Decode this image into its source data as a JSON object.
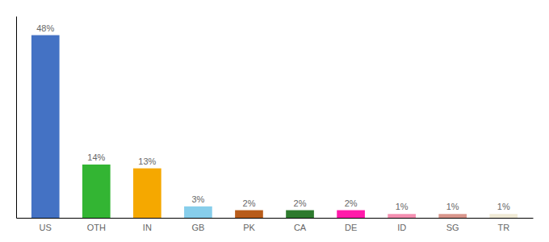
{
  "chart_data": {
    "type": "bar",
    "categories": [
      "US",
      "OTH",
      "IN",
      "GB",
      "PK",
      "CA",
      "DE",
      "ID",
      "SG",
      "TR"
    ],
    "values": [
      48,
      14,
      13,
      3,
      2,
      2,
      2,
      1,
      1,
      1
    ],
    "value_labels": [
      "48%",
      "14%",
      "13%",
      "3%",
      "2%",
      "2%",
      "2%",
      "1%",
      "1%",
      "1%"
    ],
    "colors": [
      "#4472c4",
      "#33b533",
      "#f5a800",
      "#87ceeb",
      "#b85c1a",
      "#2d7a2d",
      "#ff1aaa",
      "#f48fb1",
      "#d9968c",
      "#f0ead6"
    ],
    "ylim": [
      0,
      53
    ],
    "grid": false,
    "tick_labels": "x"
  }
}
